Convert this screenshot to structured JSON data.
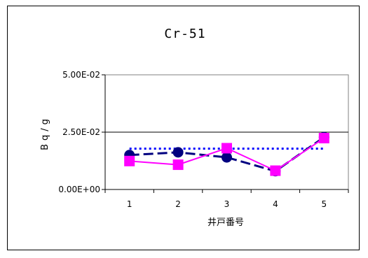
{
  "chart_data": {
    "type": "line",
    "title": "Cr-51",
    "xlabel": "井戸番号",
    "ylabel": "Bq/g",
    "categories": [
      "1",
      "2",
      "3",
      "4",
      "5"
    ],
    "ylim": [
      0,
      0.05
    ],
    "yticks": [
      "0.00E+00",
      "2.50E-02",
      "5.00E-02"
    ],
    "ytick_values": [
      0,
      0.025,
      0.05
    ],
    "grid": "horizontal",
    "legend": "none",
    "series": [
      {
        "style": "dotted",
        "color": "#0000ff",
        "marker": "none",
        "values": [
          0.0178,
          0.0178,
          0.0178,
          0.0178,
          0.0178
        ]
      },
      {
        "style": "dashed",
        "color": "#000080",
        "marker": "circle",
        "values": [
          0.015,
          0.0162,
          0.014,
          0.008,
          0.0228
        ]
      },
      {
        "style": "solid",
        "color": "#ff00ff",
        "marker": "square",
        "values": [
          0.0124,
          0.0108,
          0.018,
          0.0082,
          0.0224
        ]
      }
    ]
  }
}
